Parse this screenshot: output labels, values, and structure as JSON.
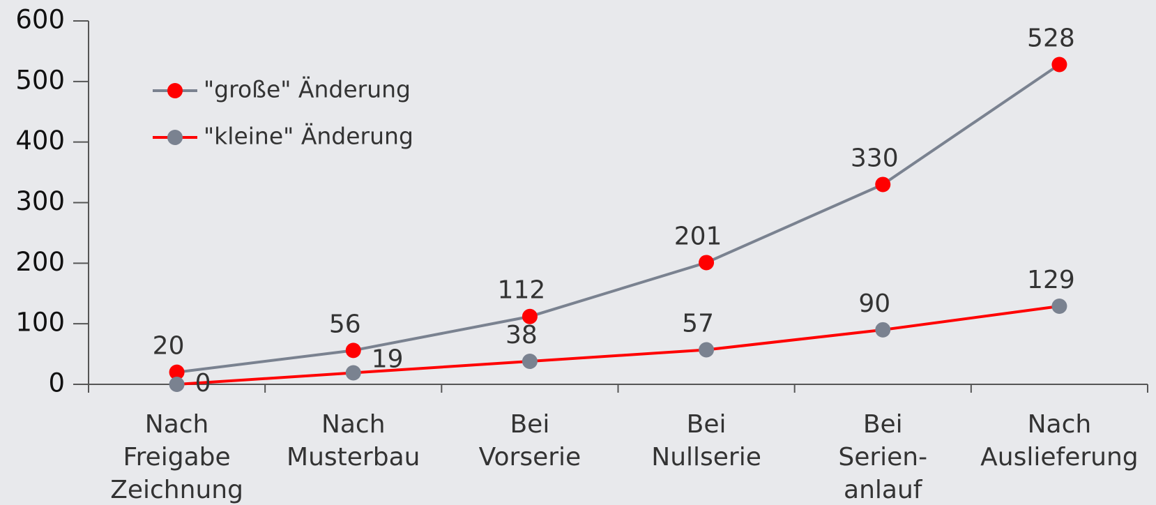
{
  "chart_data": {
    "type": "line",
    "categories": [
      [
        "Nach",
        "Freigabe",
        "Zeichnung"
      ],
      [
        "Nach",
        "Musterbau"
      ],
      [
        "Bei",
        "Vorserie"
      ],
      [
        "Bei",
        "Nullserie"
      ],
      [
        "Bei",
        "Serien-",
        "anlauf"
      ],
      [
        "Nach",
        "Auslieferung"
      ]
    ],
    "series": [
      {
        "name": "\"große\" Änderung",
        "color": "#7a8290",
        "marker_color": "#ff0000",
        "values": [
          20,
          56,
          112,
          201,
          330,
          528
        ]
      },
      {
        "name": "\"kleine\" Änderung",
        "color": "#ff0000",
        "marker_color": "#7a8290",
        "values": [
          0,
          19,
          38,
          57,
          90,
          129
        ]
      }
    ],
    "ylim": [
      0,
      600
    ],
    "yticks": [
      0,
      100,
      200,
      300,
      400,
      500,
      600
    ],
    "legend": "upper left",
    "grid": false
  }
}
